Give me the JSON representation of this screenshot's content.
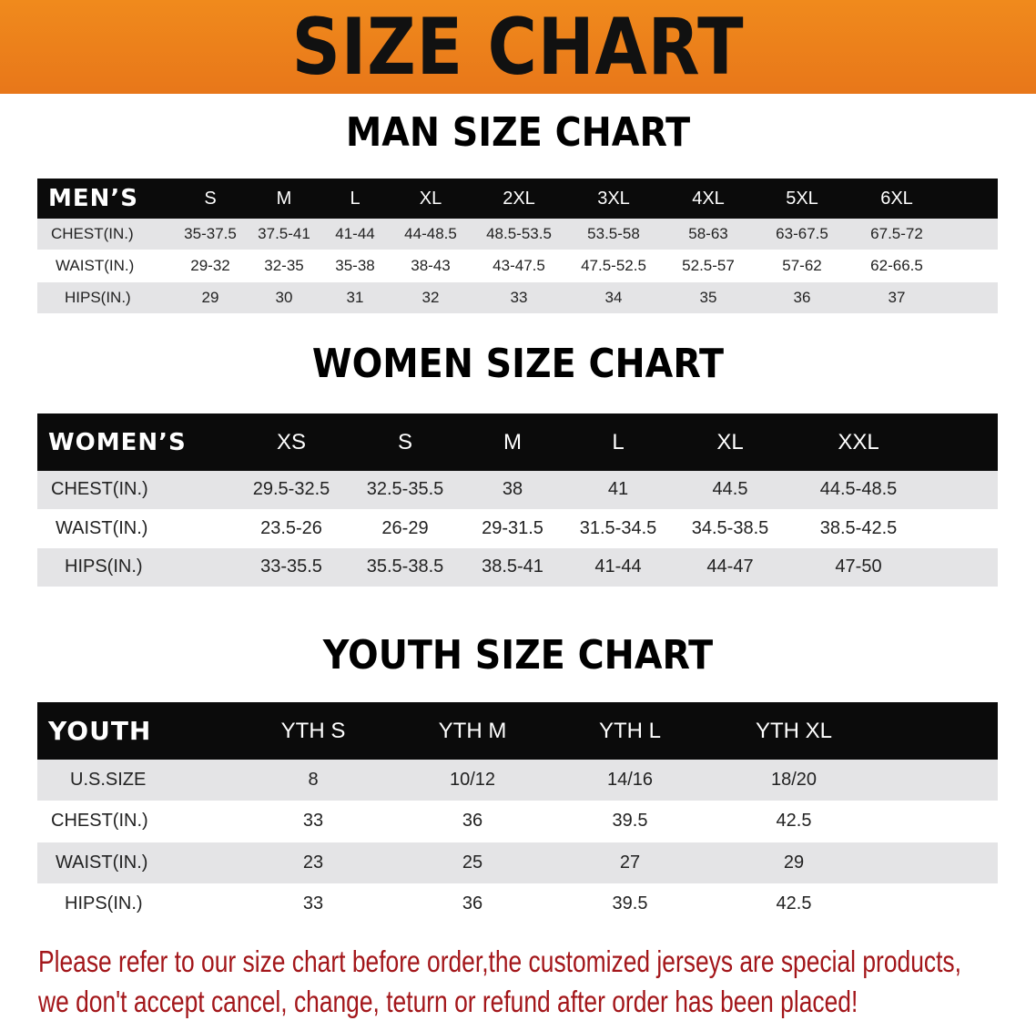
{
  "banner": {
    "title": "SIZE CHART",
    "color": "#ee8219"
  },
  "men": {
    "title": "MAN SIZE CHART",
    "header_label": "MEN’S",
    "sizes": [
      "S",
      "M",
      "L",
      "XL",
      "2XL",
      "3XL",
      "4XL",
      "5XL",
      "6XL"
    ],
    "rows": [
      {
        "label": "CHEST(IN.)",
        "values": [
          "35-37.5",
          "37.5-41",
          "41-44",
          "44-48.5",
          "48.5-53.5",
          "53.5-58",
          "58-63",
          "63-67.5",
          "67.5-72"
        ]
      },
      {
        "label": "WAIST(IN.)",
        "values": [
          "29-32",
          "32-35",
          "35-38",
          "38-43",
          "43-47.5",
          "47.5-52.5",
          "52.5-57",
          "57-62",
          "62-66.5"
        ]
      },
      {
        "label": "HIPS(IN.)",
        "values": [
          "29",
          "30",
          "31",
          "32",
          "33",
          "34",
          "35",
          "36",
          "37"
        ]
      }
    ]
  },
  "women": {
    "title": "WOMEN SIZE CHART",
    "header_label": "WOMEN’S",
    "sizes": [
      "XS",
      "S",
      "M",
      "L",
      "XL",
      "XXL"
    ],
    "rows": [
      {
        "label": "CHEST(IN.)",
        "values": [
          "29.5-32.5",
          "32.5-35.5",
          "38",
          "41",
          "44.5",
          "44.5-48.5"
        ]
      },
      {
        "label": "WAIST(IN.)",
        "values": [
          "23.5-26",
          "26-29",
          "29-31.5",
          "31.5-34.5",
          "34.5-38.5",
          "38.5-42.5"
        ]
      },
      {
        "label": "HIPS(IN.)",
        "values": [
          "33-35.5",
          "35.5-38.5",
          "38.5-41",
          "41-44",
          "44-47",
          "47-50"
        ]
      }
    ]
  },
  "youth": {
    "title": "YOUTH SIZE CHART",
    "header_label": "YOUTH",
    "sizes": [
      "YTH S",
      "YTH M",
      "YTH L",
      "YTH XL"
    ],
    "rows": [
      {
        "label": "U.S.SIZE",
        "values": [
          "8",
          "10/12",
          "14/16",
          "18/20"
        ]
      },
      {
        "label": "CHEST(IN.)",
        "values": [
          "33",
          "36",
          "39.5",
          "42.5"
        ]
      },
      {
        "label": "WAIST(IN.)",
        "values": [
          "23",
          "25",
          "27",
          "29"
        ]
      },
      {
        "label": "HIPS(IN.)",
        "values": [
          "33",
          "36",
          "39.5",
          "42.5"
        ]
      }
    ]
  },
  "notice": {
    "line1": "Please refer to our size chart before order,the customized jerseys are special products,",
    "line2": "we don't accept cancel, change, teturn or refund after order has been placed!",
    "color": "#a3161a"
  }
}
